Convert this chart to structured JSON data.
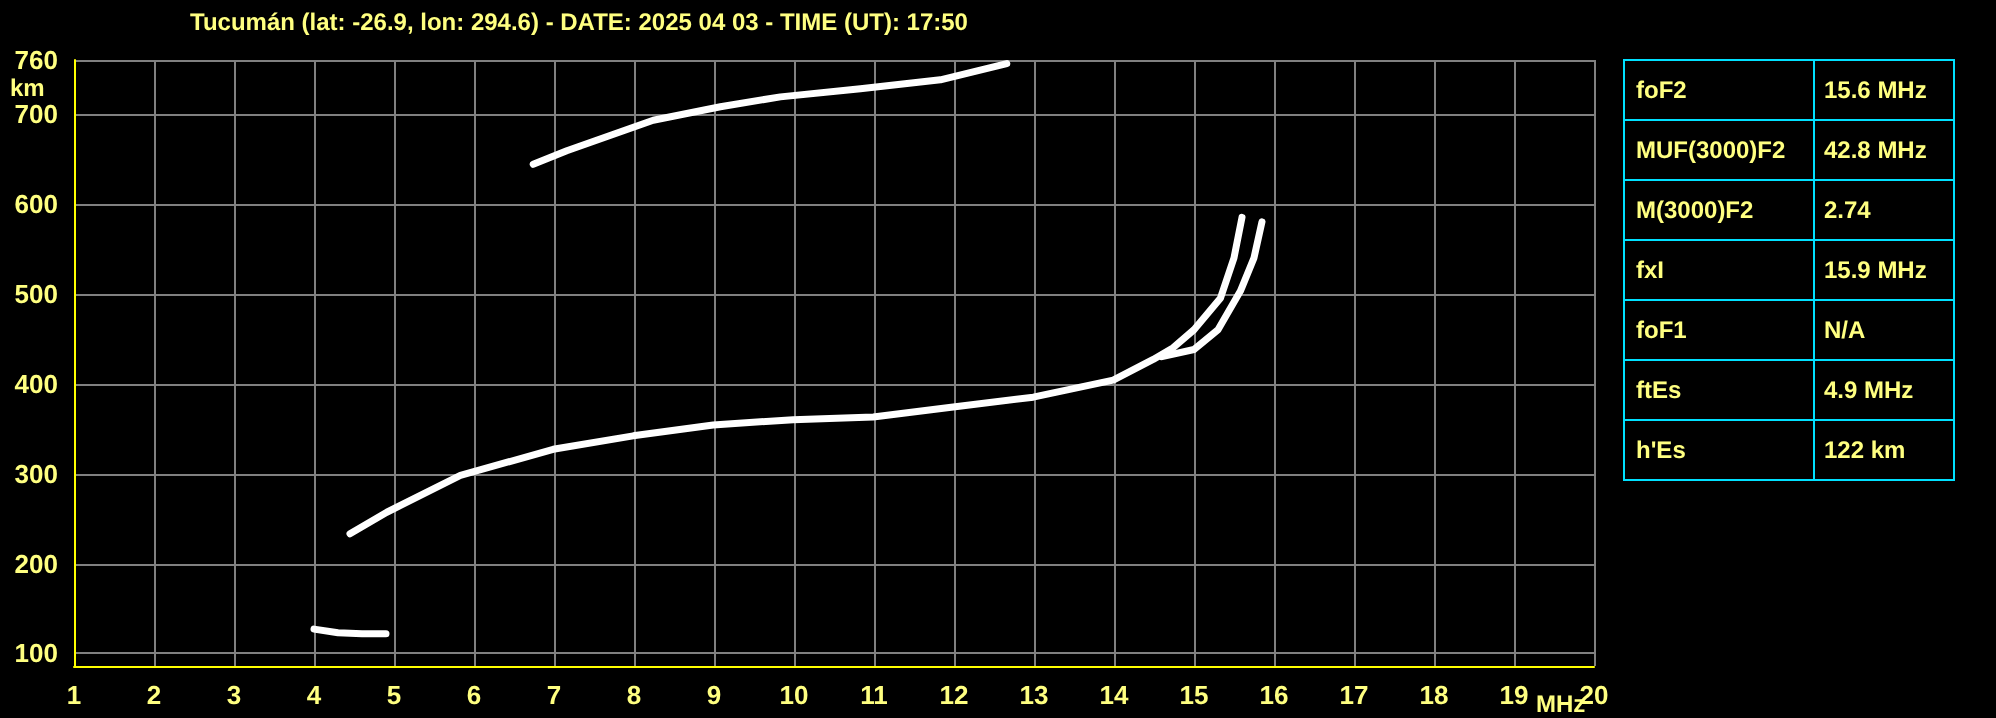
{
  "chart_data": {
    "type": "line",
    "title": "Tucumán (lat: -26.9, lon: 294.6) - DATE: 2025 04 03 - TIME (UT): 17:50",
    "xlabel": "MHz",
    "ylabel": "km",
    "xlim": [
      1,
      20
    ],
    "xticks": [
      1,
      2,
      3,
      4,
      5,
      6,
      7,
      8,
      9,
      10,
      11,
      12,
      13,
      14,
      15,
      16,
      17,
      18,
      19,
      20
    ],
    "ylim": [
      86,
      760
    ],
    "yticks": [
      100,
      200,
      300,
      400,
      500,
      600,
      700,
      760
    ],
    "grid": true,
    "marker": "none",
    "line_style": "solid",
    "series": [
      {
        "color": "#ffffff",
        "x": [
          4.45,
          4.91,
          5.83,
          6.99,
          7.99,
          8.99,
          9.99,
          10.99,
          11.99,
          12.99,
          13.99,
          14.49,
          14.74,
          15.0,
          15.33,
          15.5,
          15.6
        ],
        "values": [
          233,
          257,
          298,
          327,
          342,
          354,
          360,
          363,
          374,
          385,
          404,
          427,
          440,
          460,
          495,
          540,
          585
        ]
      },
      {
        "color": "#ffffff",
        "x": [
          14.6,
          15.0,
          15.3,
          15.58,
          15.75,
          15.85
        ],
        "values": [
          430,
          438,
          460,
          503,
          540,
          580
        ]
      },
      {
        "color": "#ffffff",
        "x": [
          4.0,
          4.3,
          4.6,
          4.9
        ],
        "values": [
          127,
          123,
          122,
          122
        ]
      },
      {
        "color": "#ffffff",
        "x": [
          6.74,
          7.16,
          8.24,
          9.08,
          9.83,
          10.83,
          11.83,
          12.66
        ],
        "values": [
          644,
          659,
          693,
          708,
          719,
          728,
          738,
          756
        ]
      }
    ],
    "annotations": [
      "foF2",
      "15.6 MHz",
      "MUF(3000)F2",
      "42.8 MHz",
      "M(3000)F2",
      "2.74",
      "fxI",
      "15.9 MHz",
      "foF1",
      "N/A",
      "ftEs",
      "4.9 MHz",
      "h'Es",
      "122 km"
    ]
  }
}
